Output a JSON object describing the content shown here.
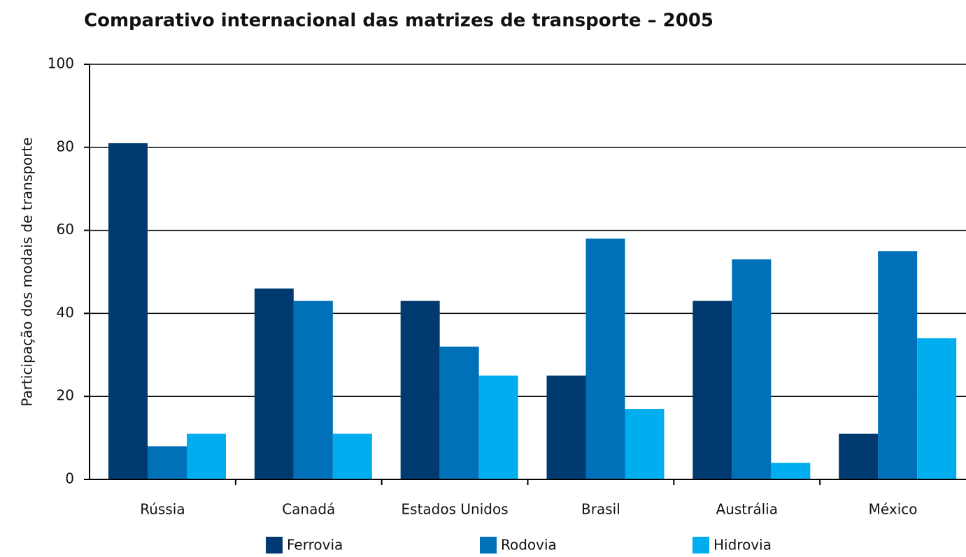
{
  "chart_data": {
    "type": "bar",
    "title": "Comparativo internacional das matrizes de transporte – 2005",
    "y_label": "Participação dos modais de transporte",
    "categories": [
      "Rússia",
      "Canadá",
      "Estados Unidos",
      "Brasil",
      "Austrália",
      "México"
    ],
    "series": [
      {
        "name": "Ferrovia",
        "color": "#003a70",
        "values": [
          81,
          46,
          43,
          25,
          43,
          11
        ]
      },
      {
        "name": "Rodovia",
        "color": "#0070b8",
        "values": [
          8,
          43,
          32,
          58,
          53,
          55
        ]
      },
      {
        "name": "Hidrovia",
        "color": "#00aeef",
        "values": [
          11,
          11,
          25,
          17,
          4,
          34
        ]
      }
    ],
    "ylim": [
      0,
      100
    ],
    "yticks": [
      0,
      20,
      40,
      60,
      80,
      100
    ],
    "grid": true,
    "legend": "bottom"
  }
}
